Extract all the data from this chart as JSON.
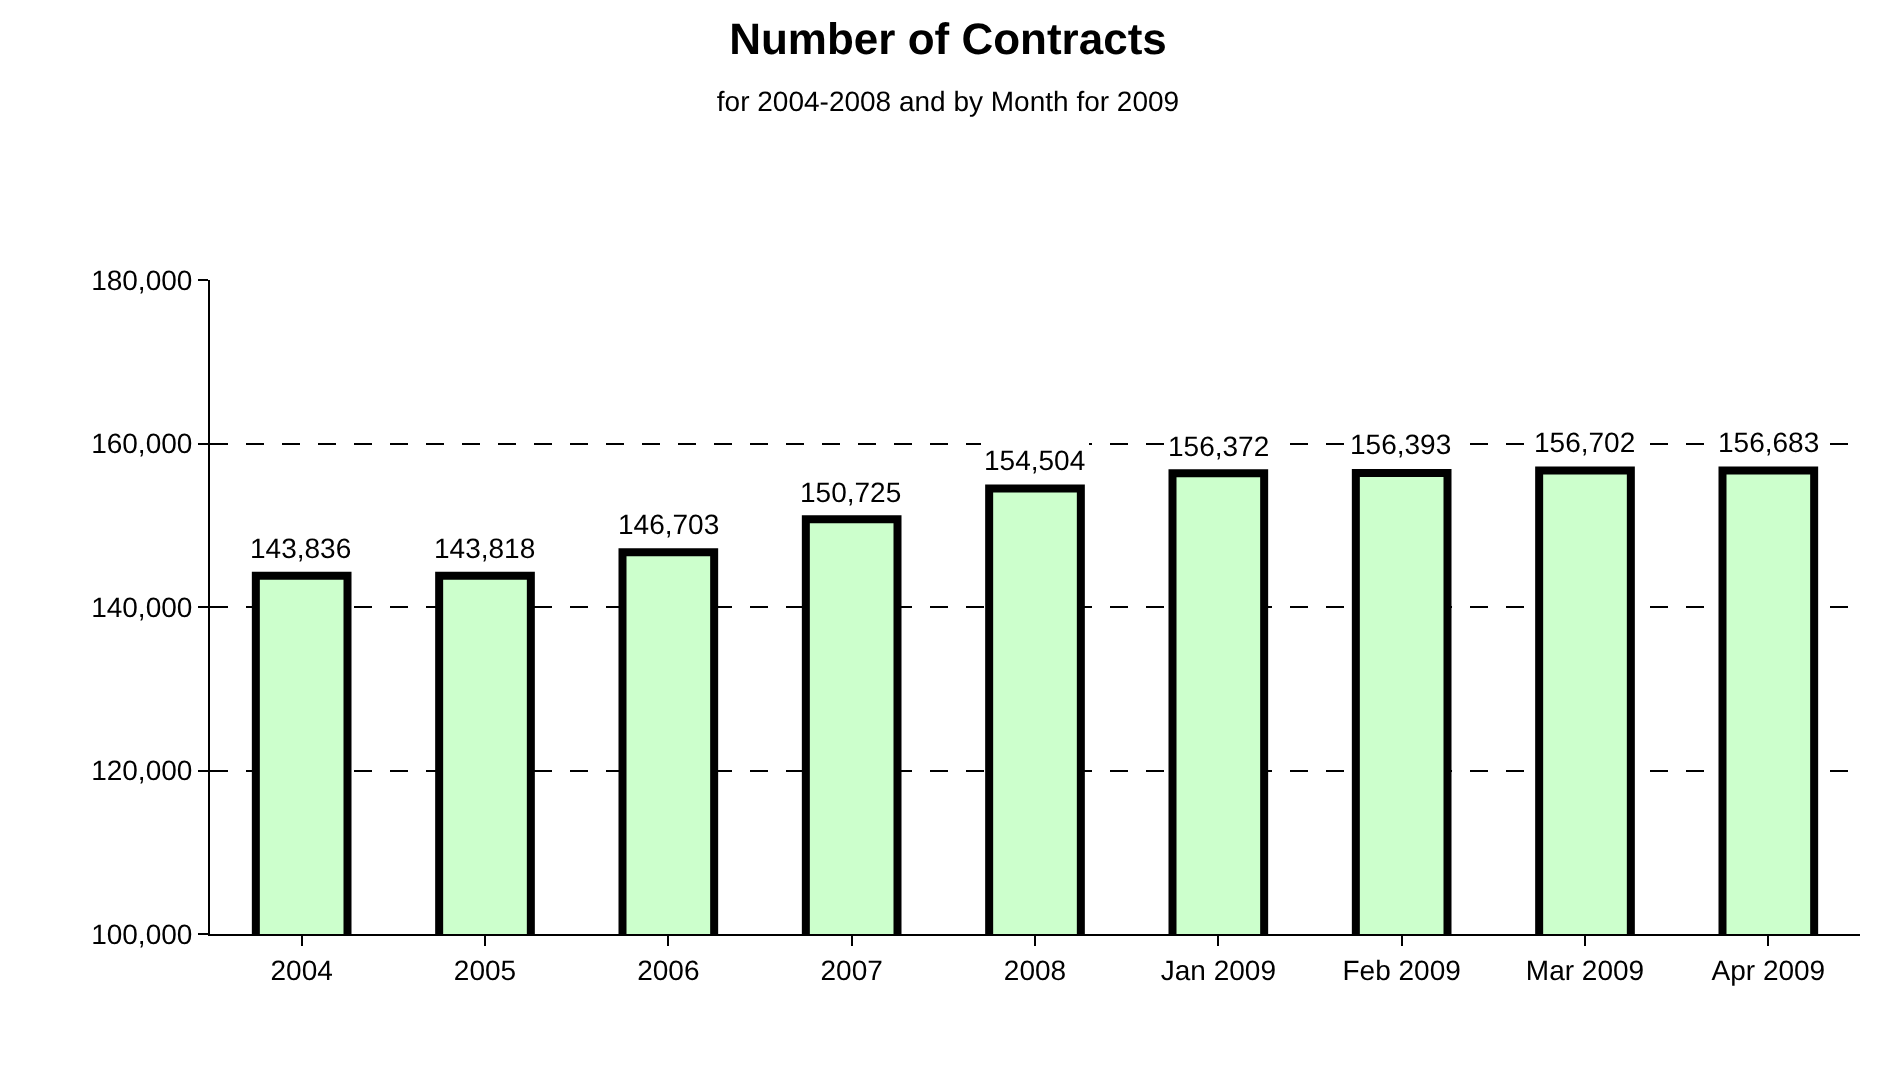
{
  "chart_data": {
    "type": "bar",
    "title": "Number of Contracts",
    "subtitle": "for 2004-2008 and by Month for 2009",
    "categories": [
      "2004",
      "2005",
      "2006",
      "2007",
      "2008",
      "Jan 2009",
      "Feb 2009",
      "Mar 2009",
      "Apr 2009"
    ],
    "values": [
      143836,
      143818,
      146703,
      150725,
      154504,
      156372,
      156393,
      156702,
      156683
    ],
    "color": "#ccffcc",
    "ylim": [
      100000,
      180000
    ],
    "yticks": [
      {
        "value": 100000,
        "label": "100,000"
      },
      {
        "value": 120000,
        "label": "120,000"
      },
      {
        "value": 140000,
        "label": "140,000"
      },
      {
        "value": 160000,
        "label": "160,000"
      },
      {
        "value": 180000,
        "label": "180,000"
      }
    ],
    "value_labels": [
      "143,836",
      "143,818",
      "146,703",
      "150,725",
      "154,504",
      "156,372",
      "156,393",
      "156,702",
      "156,683"
    ],
    "grid": "y",
    "line_style": "dashed",
    "legend": false
  }
}
